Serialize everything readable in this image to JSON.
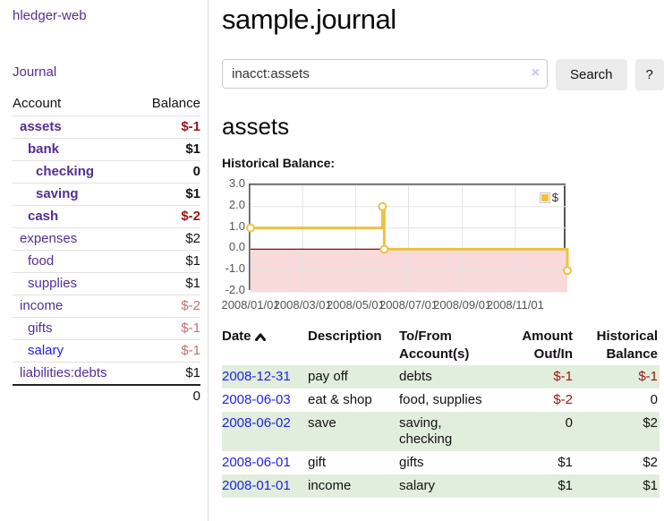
{
  "app": {
    "brand": "hledger-web",
    "nav_journal": "Journal"
  },
  "colors": {
    "link_purple": "#542e91",
    "link_blue": "#2222e0",
    "negative_strong": "#991414",
    "negative_soft": "#c17070",
    "row_green": "#e2eedd",
    "chart_line": "#edc240",
    "chart_negative_fill": "#f8dada",
    "chart_zero_line": "#990000",
    "chart_border": "#545454"
  },
  "sidebar": {
    "headers": {
      "account": "Account",
      "balance": "Balance"
    },
    "accounts": [
      {
        "name": "assets",
        "balance": "$-1",
        "indent": 0,
        "bold": true,
        "balance_style": "neg-strong"
      },
      {
        "name": "bank",
        "balance": "$1",
        "indent": 1,
        "bold": true,
        "balance_style": "normal"
      },
      {
        "name": "checking",
        "balance": "0",
        "indent": 2,
        "bold": true,
        "balance_style": "normal"
      },
      {
        "name": "saving",
        "balance": "$1",
        "indent": 2,
        "bold": true,
        "balance_style": "normal"
      },
      {
        "name": "cash",
        "balance": "$-2",
        "indent": 1,
        "bold": true,
        "balance_style": "neg-strong"
      },
      {
        "name": "expenses",
        "balance": "$2",
        "indent": 0,
        "bold": false,
        "balance_style": "normal"
      },
      {
        "name": "food",
        "balance": "$1",
        "indent": 1,
        "bold": false,
        "balance_style": "normal"
      },
      {
        "name": "supplies",
        "balance": "$1",
        "indent": 1,
        "bold": false,
        "balance_style": "normal"
      },
      {
        "name": "income",
        "balance": "$-2",
        "indent": 0,
        "bold": false,
        "balance_style": "neg-soft"
      },
      {
        "name": "gifts",
        "balance": "$-1",
        "indent": 1,
        "bold": false,
        "balance_style": "neg-soft"
      },
      {
        "name": "salary",
        "balance": "$-1",
        "indent": 1,
        "bold": false,
        "balance_style": "neg-soft",
        "link_style": "blue"
      },
      {
        "name": "liabilities:debts",
        "balance": "$1",
        "indent": 0,
        "bold": false,
        "balance_style": "normal"
      }
    ],
    "total": "0"
  },
  "main": {
    "title": "sample.journal",
    "search": {
      "value": "inacct:assets",
      "clear_label": "×",
      "search_button": "Search",
      "help_button": "?"
    },
    "account_heading": "assets",
    "section_label": "Historical Balance:"
  },
  "chart_data": {
    "type": "line",
    "step": true,
    "title": "Historical Balance",
    "legend": "$",
    "series": [
      {
        "name": "$",
        "color": "#edc240",
        "points": [
          {
            "date": "2008-01-01",
            "value": 1
          },
          {
            "date": "2008-06-01",
            "value": 2
          },
          {
            "date": "2008-06-03",
            "value": 0
          },
          {
            "date": "2008-12-31",
            "value": -1
          }
        ]
      }
    ],
    "xlim": [
      "2008-01-01",
      "2008-12-31"
    ],
    "ylim": [
      -2,
      3
    ],
    "x_ticks": [
      {
        "label": "2008/01/01",
        "date": "2008-01-01"
      },
      {
        "label": "2008/03/01",
        "date": "2008-03-01"
      },
      {
        "label": "2008/05/01",
        "date": "2008-05-01"
      },
      {
        "label": "2008/07/01",
        "date": "2008-07-01"
      },
      {
        "label": "2008/09/01",
        "date": "2008-09-01"
      },
      {
        "label": "2008/11/01",
        "date": "2008-11-01"
      }
    ],
    "y_ticks": [
      {
        "label": "3.0",
        "value": 3
      },
      {
        "label": "2.0",
        "value": 2
      },
      {
        "label": "1.0",
        "value": 1
      },
      {
        "label": "0.0",
        "value": 0
      },
      {
        "label": "-1.0",
        "value": -1
      },
      {
        "label": "-2.0",
        "value": -2
      }
    ],
    "grid": true,
    "legend_position": "top-right",
    "negative_fill": "#f8dada",
    "zero_line_color": "#990000"
  },
  "register": {
    "headers": {
      "date": "Date",
      "description": "Description",
      "accounts": "To/From Account(s)",
      "amount": "Amount Out/In",
      "balance": "Historical Balance"
    },
    "sort": {
      "column": "date",
      "direction": "ascending"
    },
    "rows": [
      {
        "date": "2008-12-31",
        "description": "pay off",
        "accounts": "debts",
        "amount": "$-1",
        "amount_negative": true,
        "balance": "$-1",
        "balance_negative": true
      },
      {
        "date": "2008-06-03",
        "description": "eat & shop",
        "accounts": "food, supplies",
        "amount": "$-2",
        "amount_negative": true,
        "balance": "0",
        "balance_negative": false
      },
      {
        "date": "2008-06-02",
        "description": "save",
        "accounts": "saving, checking",
        "amount": "0",
        "amount_negative": false,
        "balance": "$2",
        "balance_negative": false
      },
      {
        "date": "2008-06-01",
        "description": "gift",
        "accounts": "gifts",
        "amount": "$1",
        "amount_negative": false,
        "balance": "$2",
        "balance_negative": false
      },
      {
        "date": "2008-01-01",
        "description": "income",
        "accounts": "salary",
        "amount": "$1",
        "amount_negative": false,
        "balance": "$1",
        "balance_negative": false
      }
    ]
  }
}
